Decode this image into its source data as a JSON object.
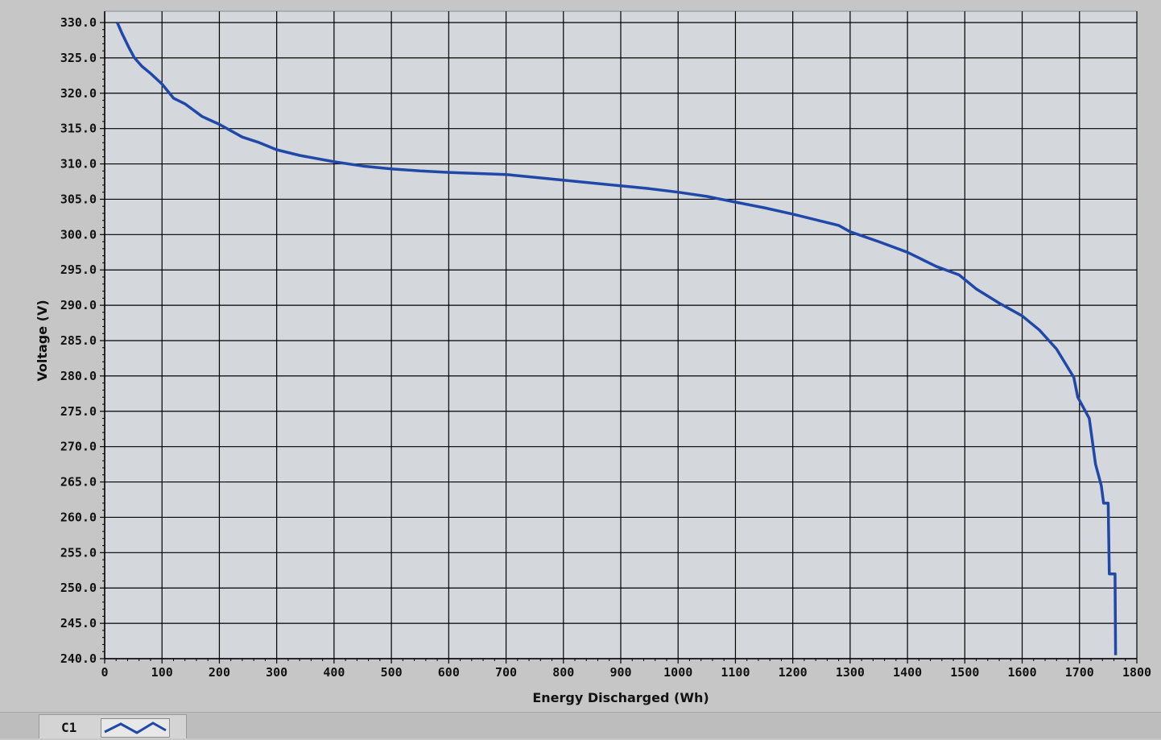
{
  "chart_data": {
    "type": "line",
    "title": "",
    "xlabel": "Energy Discharged (Wh)",
    "ylabel": "Voltage (V)",
    "xlim": [
      0,
      1800
    ],
    "ylim": [
      240,
      330
    ],
    "x_ticks": [
      0,
      100,
      200,
      300,
      400,
      500,
      600,
      700,
      800,
      900,
      1000,
      1100,
      1200,
      1300,
      1400,
      1500,
      1600,
      1700,
      1800
    ],
    "x_tick_labels": [
      "0",
      "100",
      "200",
      "300",
      "400",
      "500",
      "600",
      "700",
      "800",
      "900",
      "1000",
      "1100",
      "1200",
      "1300",
      "1400",
      "1500",
      "1600",
      "1700",
      "1800"
    ],
    "y_ticks": [
      240,
      245,
      250,
      255,
      260,
      265,
      270,
      275,
      280,
      285,
      290,
      295,
      300,
      305,
      310,
      315,
      320,
      325,
      330
    ],
    "y_tick_labels": [
      "240.0",
      "245.0",
      "250.0",
      "255.0",
      "260.0",
      "265.0",
      "270.0",
      "275.0",
      "280.0",
      "285.0",
      "290.0",
      "295.0",
      "300.0",
      "305.0",
      "310.0",
      "315.0",
      "320.0",
      "325.0",
      "330.0"
    ],
    "grid": true,
    "plot_background": "#d4d8dc",
    "grid_color": "#000000",
    "series": [
      {
        "name": "C1",
        "color": "#2048a8",
        "points": [
          [
            22,
            330
          ],
          [
            30,
            328.5
          ],
          [
            42,
            326.5
          ],
          [
            52,
            325
          ],
          [
            65,
            323.8
          ],
          [
            80,
            322.8
          ],
          [
            100,
            321.3
          ],
          [
            120,
            319.3
          ],
          [
            140,
            318.5
          ],
          [
            170,
            316.7
          ],
          [
            200,
            315.6
          ],
          [
            240,
            313.8
          ],
          [
            270,
            313
          ],
          [
            300,
            312
          ],
          [
            340,
            311.2
          ],
          [
            400,
            310.3
          ],
          [
            450,
            309.7
          ],
          [
            500,
            309.3
          ],
          [
            550,
            309
          ],
          [
            600,
            308.8
          ],
          [
            700,
            308.5
          ],
          [
            800,
            307.7
          ],
          [
            900,
            306.9
          ],
          [
            950,
            306.5
          ],
          [
            1000,
            306
          ],
          [
            1050,
            305.4
          ],
          [
            1100,
            304.6
          ],
          [
            1150,
            303.8
          ],
          [
            1200,
            302.9
          ],
          [
            1250,
            301.9
          ],
          [
            1280,
            301.3
          ],
          [
            1300,
            300.4
          ],
          [
            1350,
            299
          ],
          [
            1400,
            297.5
          ],
          [
            1450,
            295.5
          ],
          [
            1490,
            294.3
          ],
          [
            1520,
            292.3
          ],
          [
            1560,
            290.3
          ],
          [
            1600,
            288.5
          ],
          [
            1630,
            286.5
          ],
          [
            1660,
            283.8
          ],
          [
            1690,
            279.8
          ],
          [
            1697,
            277
          ],
          [
            1717,
            274
          ],
          [
            1728,
            267.5
          ],
          [
            1738,
            264.5
          ],
          [
            1742,
            262
          ],
          [
            1750,
            262
          ],
          [
            1752,
            252
          ],
          [
            1762,
            252
          ],
          [
            1763,
            240.5
          ]
        ]
      }
    ],
    "legend": {
      "position": "bottom-left",
      "entries": [
        "C1"
      ]
    }
  }
}
